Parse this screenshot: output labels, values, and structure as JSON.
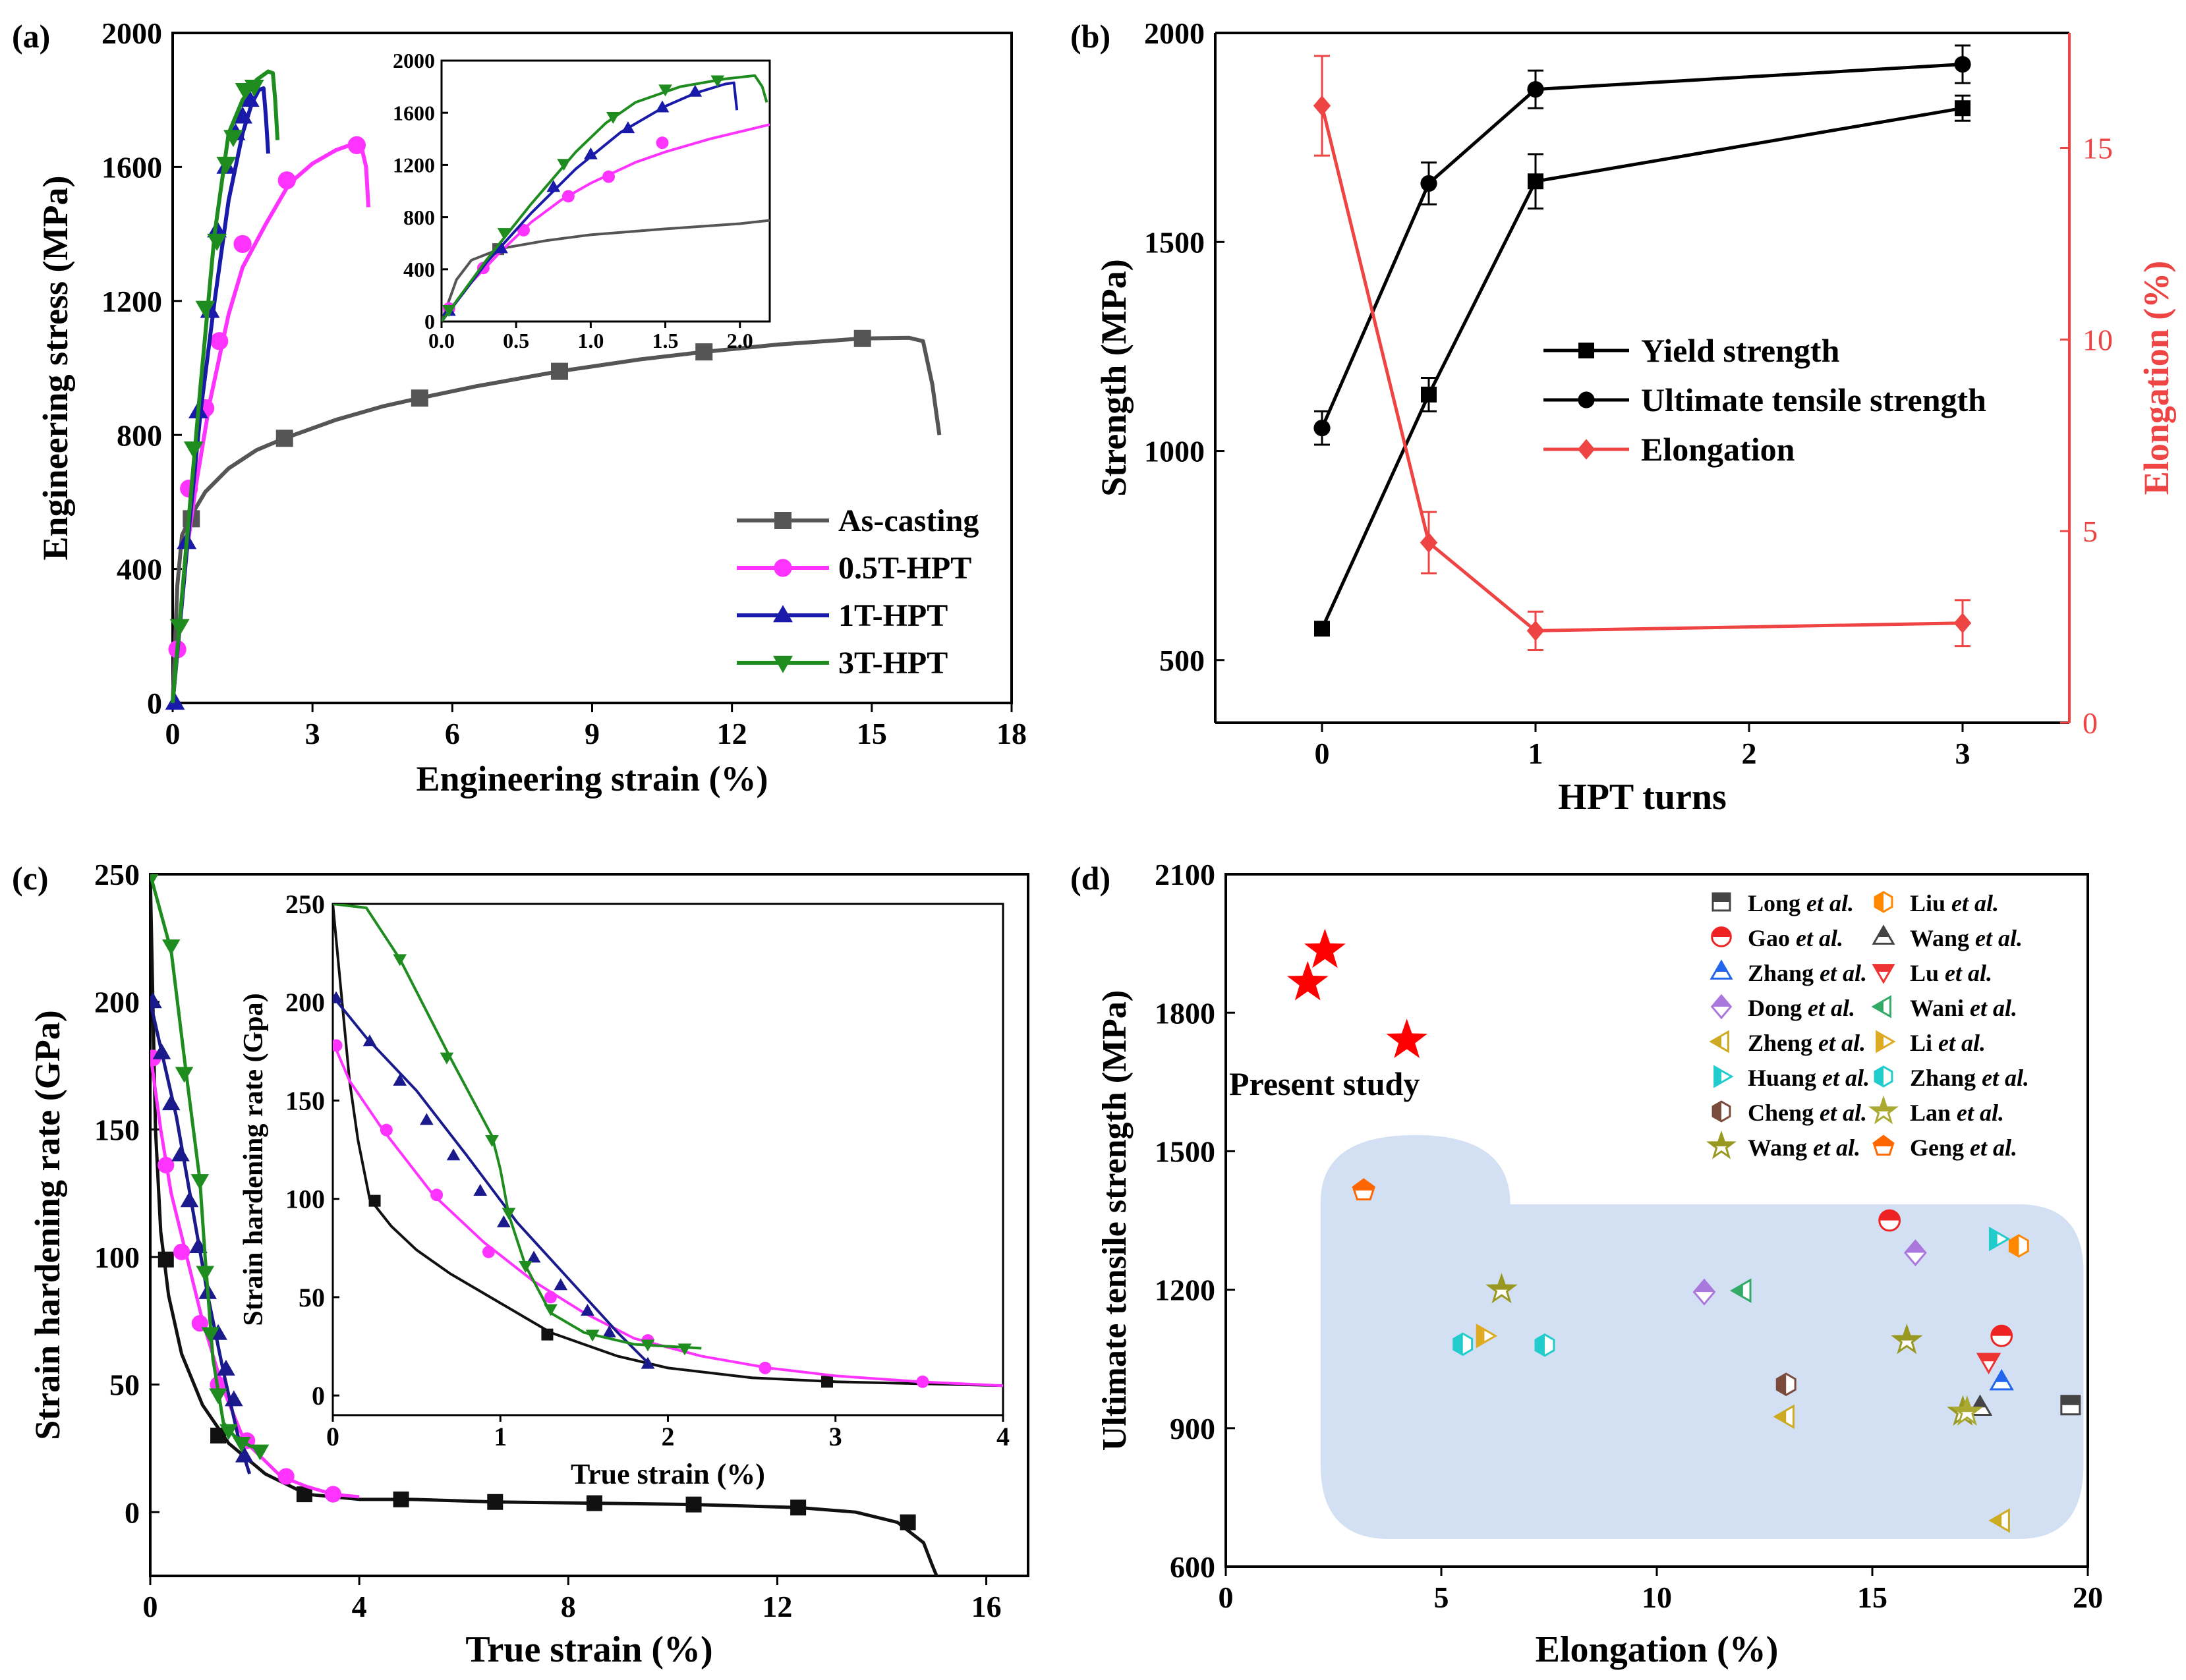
{
  "figure": {
    "panels": [
      {
        "id": "a",
        "label": "(a)",
        "type": "line",
        "xlabel": "Engineering strain (%)",
        "ylabel": "Engineering stress (MPa)",
        "xlim": [
          0,
          18
        ],
        "ylim": [
          0,
          2000
        ],
        "xticks": [
          "0",
          "3",
          "6",
          "9",
          "12",
          "15",
          "18"
        ],
        "yticks": [
          "0",
          "400",
          "800",
          "1200",
          "1600",
          "2000"
        ],
        "legend": {
          "placement": "bottom-right"
        },
        "series": [
          {
            "name": "As-casting",
            "color": "#555555",
            "marker": "square",
            "x": [
              0,
              0.1,
              0.2,
              0.4,
              0.7,
              1.2,
              1.8,
              2.4,
              3.5,
              4.5,
              5.3,
              6.5,
              8.3,
              10,
              11.4,
              13,
              14.8,
              15.8,
              16.1,
              16.3,
              16.45
            ],
            "y": [
              0,
              350,
              500,
              560,
              630,
              700,
              755,
              790,
              845,
              885,
              910,
              945,
              990,
              1025,
              1048,
              1070,
              1088,
              1090,
              1080,
              950,
              800
            ],
            "markers_x": [
              0.4,
              2.4,
              5.3,
              8.3,
              11.4,
              14.8
            ],
            "markers_y": [
              550,
              790,
              910,
              990,
              1048,
              1088
            ]
          },
          {
            "name": "0.5T-HPT",
            "color": "#ff33ff",
            "marker": "circle",
            "x": [
              0,
              0.3,
              0.5,
              0.8,
              1.2,
              1.5,
              2.0,
              2.5,
              3.0,
              3.5,
              3.9,
              4.05,
              4.15,
              4.2
            ],
            "y": [
              0,
              450,
              650,
              900,
              1160,
              1300,
              1430,
              1550,
              1610,
              1650,
              1670,
              1660,
              1600,
              1480
            ],
            "markers_x": [
              0.1,
              0.35,
              0.7,
              1.0,
              1.5,
              2.45,
              3.95
            ],
            "markers_y": [
              160,
              640,
              880,
              1080,
              1370,
              1560,
              1665
            ]
          },
          {
            "name": "1T-HPT",
            "color": "#1a1aaa",
            "marker": "triangle-up",
            "x": [
              0,
              0.3,
              0.6,
              0.9,
              1.2,
              1.5,
              1.7,
              1.85,
              1.95,
              2.0,
              2.05
            ],
            "y": [
              0,
              450,
              870,
              1200,
              1500,
              1700,
              1790,
              1830,
              1835,
              1750,
              1640
            ],
            "markers_x": [
              0.05,
              0.3,
              0.55,
              0.8,
              0.95,
              1.15,
              1.35,
              1.5,
              1.65
            ],
            "markers_y": [
              0,
              480,
              870,
              1170,
              1410,
              1600,
              1700,
              1750,
              1800
            ]
          },
          {
            "name": "3T-HPT",
            "color": "#1e8c1e",
            "marker": "triangle-down",
            "x": [
              0,
              0.3,
              0.6,
              0.9,
              1.2,
              1.5,
              1.8,
              2.05,
              2.15,
              2.2,
              2.25
            ],
            "y": [
              0,
              480,
              950,
              1400,
              1700,
              1800,
              1860,
              1885,
              1880,
              1800,
              1680
            ],
            "markers_x": [
              0.15,
              0.45,
              0.7,
              0.95,
              1.15,
              1.3,
              1.55,
              1.75
            ],
            "markers_y": [
              230,
              760,
              1180,
              1380,
              1610,
              1690,
              1830,
              1840
            ]
          }
        ],
        "inset": {
          "xlim": [
            0,
            2.2
          ],
          "ylim": [
            0,
            2000
          ],
          "xticks": [
            "0.0",
            "0.5",
            "1.0",
            "1.5",
            "2.0"
          ],
          "yticks": [
            "0",
            "400",
            "800",
            "1200",
            "1600",
            "2000"
          ]
        }
      },
      {
        "id": "b",
        "label": "(b)",
        "type": "line",
        "xlabel": "HPT turns",
        "ylabel": "Strength (MPa)",
        "ylabel_right": "Elongation (%)",
        "xlim": [
          -0.5,
          3.5
        ],
        "ylim": [
          350,
          2000
        ],
        "ylim_right": [
          0,
          18
        ],
        "xticks": [
          "0",
          "1",
          "2",
          "3"
        ],
        "yticks": [
          "500",
          "1000",
          "1500",
          "2000"
        ],
        "yticks_right": [
          "0",
          "5",
          "10",
          "15"
        ],
        "legend": {
          "placement": "center-right"
        },
        "series": [
          {
            "name": "Yield strength",
            "color": "#000000",
            "marker": "square",
            "axis": "left",
            "x": [
              0,
              0.5,
              1,
              3
            ],
            "y": [
              575,
              1135,
              1645,
              1820
            ],
            "err": [
              0,
              40,
              65,
              30
            ]
          },
          {
            "name": "Ultimate tensile strength",
            "color": "#000000",
            "marker": "circle",
            "axis": "left",
            "x": [
              0,
              0.5,
              1,
              3
            ],
            "y": [
              1055,
              1640,
              1865,
              1925
            ],
            "err": [
              40,
              50,
              45,
              45
            ]
          },
          {
            "name": "Elongation",
            "color": "#ee4444",
            "marker": "diamond",
            "axis": "right",
            "x": [
              0,
              0.5,
              1,
              3
            ],
            "y": [
              16.1,
              4.7,
              2.4,
              2.6
            ],
            "err": [
              1.3,
              0.8,
              0.5,
              0.6
            ]
          }
        ]
      },
      {
        "id": "c",
        "label": "(c)",
        "type": "line",
        "xlabel": "True strain (%)",
        "ylabel": "Strain hardening rate (GPa)",
        "xlim": [
          0,
          16.8
        ],
        "ylim": [
          -25,
          250
        ],
        "xticks": [
          "0",
          "4",
          "8",
          "12",
          "16"
        ],
        "yticks": [
          "0",
          "50",
          "100",
          "150",
          "200",
          "250"
        ],
        "legend": {
          "placement": "top-right"
        },
        "series": [
          {
            "name": "As-casting",
            "color": "#111111",
            "marker": "square",
            "x": [
              0,
              0.05,
              0.1,
              0.2,
              0.35,
              0.6,
              1.0,
              1.5,
              2.2,
              3.0,
              4.0,
              5.0,
              6.6,
              8.5,
              10.4,
              12.4,
              13.5,
              14.3,
              14.8,
              14.95,
              15.05
            ],
            "y": [
              250,
              200,
              150,
              110,
              85,
              62,
              42,
              27,
              15,
              7,
              5,
              5,
              4,
              3.5,
              3,
              1.8,
              0,
              -4,
              -12,
              -20,
              -25
            ],
            "markers_x": [
              0.3,
              1.3,
              2.95,
              4.8,
              6.6,
              8.5,
              10.4,
              12.4,
              14.5
            ],
            "markers_y": [
              99,
              30,
              7,
              5,
              4,
              3.5,
              3,
              1.8,
              -4
            ]
          },
          {
            "name": "0.5T-HPT",
            "color": "#ff33ff",
            "marker": "circle",
            "x": [
              0,
              0.2,
              0.4,
              0.7,
              1.0,
              1.4,
              1.8,
              2.5,
              3.0,
              3.5,
              4.0
            ],
            "y": [
              180,
              150,
              125,
              100,
              75,
              48,
              28,
              14,
              10,
              7,
              6
            ],
            "markers_x": [
              0.05,
              0.3,
              0.6,
              0.95,
              1.3,
              1.85,
              2.6,
              3.5
            ],
            "markers_y": [
              178,
              136,
              102,
              74,
              50,
              28,
              14,
              7
            ]
          },
          {
            "name": "1T-HPT",
            "color": "#1a1a8c",
            "marker": "triangle-up",
            "x": [
              0,
              0.2,
              0.5,
              0.8,
              1.1,
              1.4,
              1.7,
              1.9
            ],
            "y": [
              200,
              182,
              155,
              120,
              85,
              55,
              28,
              15
            ],
            "markers_x": [
              0.05,
              0.22,
              0.4,
              0.58,
              0.75,
              0.92,
              1.1,
              1.3,
              1.45,
              1.6,
              1.8
            ],
            "markers_y": [
              200,
              180,
              160,
              140,
              122,
              104,
              86,
              70,
              56,
              44,
              22
            ]
          },
          {
            "name": "3T-HPT",
            "color": "#1e8c1e",
            "marker": "triangle-down",
            "x": [
              0,
              0.4,
              0.7,
              0.95,
              1.05,
              1.2,
              1.4,
              1.6,
              1.9,
              2.2
            ],
            "y": [
              250,
              220,
              170,
              130,
              100,
              60,
              35,
              30,
              26,
              24
            ],
            "markers_x": [
              0.05,
              0.4,
              0.65,
              0.95,
              1.05,
              1.15,
              1.3,
              1.5,
              1.75,
              2.1
            ],
            "markers_y": [
              250,
              222,
              172,
              130,
              94,
              70,
              46,
              32,
              27,
              24
            ]
          }
        ],
        "inset": {
          "xlim": [
            0,
            4
          ],
          "ylim": [
            -10,
            250
          ],
          "xlabel": "True strain (%)",
          "ylabel": "Strain hardening rate (Gpa)",
          "xticks": [
            "0",
            "1",
            "2",
            "3",
            "4"
          ],
          "yticks": [
            "0",
            "50",
            "100",
            "150",
            "200",
            "250"
          ]
        }
      },
      {
        "id": "d",
        "label": "(d)",
        "type": "scatter",
        "xlabel": "Elongation (%)",
        "ylabel": "Ultimate tensile strength (MPa)",
        "xlim": [
          0,
          20
        ],
        "ylim": [
          600,
          2100
        ],
        "xticks": [
          "0",
          "5",
          "10",
          "15",
          "20"
        ],
        "yticks": [
          "600",
          "900",
          "1200",
          "1500",
          "1800",
          "2100"
        ],
        "annotation": "Present study",
        "legend": {
          "placement": "top-right"
        },
        "present_study": {
          "color": "#ff0000",
          "marker": "star",
          "x": [
            1.9,
            2.3,
            4.2
          ],
          "y": [
            1865,
            1935,
            1740
          ]
        },
        "series": [
          {
            "name": "Long",
            "suffix": "et al.",
            "color": "#444444",
            "marker": "square-half",
            "x": [
              19.6
            ],
            "y": [
              950
            ]
          },
          {
            "name": "Gao",
            "suffix": "et al.",
            "color": "#ee2222",
            "marker": "circle-half",
            "x": [
              15.4,
              18.0
            ],
            "y": [
              1350,
              1100
            ]
          },
          {
            "name": "Zhang",
            "suffix": "et al.",
            "color": "#2266ee",
            "marker": "triangle-up-half",
            "x": [
              18.0
            ],
            "y": [
              1000
            ]
          },
          {
            "name": "Dong",
            "suffix": "et al.",
            "color": "#aa77dd",
            "marker": "diamond-half",
            "x": [
              11.1,
              16.0
            ],
            "y": [
              1195,
              1280
            ]
          },
          {
            "name": "Zheng",
            "suffix": "et al.",
            "color": "#ccaa22",
            "marker": "triangle-left-half",
            "x": [
              13.0,
              18.0
            ],
            "y": [
              925,
              700
            ]
          },
          {
            "name": "Huang",
            "suffix": "et al.",
            "color": "#22cccc",
            "marker": "triangle-right-half",
            "x": [
              17.9
            ],
            "y": [
              1310
            ]
          },
          {
            "name": "Cheng",
            "suffix": "et al.",
            "color": "#7a4a3a",
            "marker": "hexagon-half",
            "x": [
              13.0
            ],
            "y": [
              995
            ]
          },
          {
            "name": "Wang",
            "suffix": "et al.",
            "color": "#999922",
            "marker": "star-half",
            "x": [
              6.4,
              15.8,
              17.1
            ],
            "y": [
              1200,
              1090,
              935
            ]
          },
          {
            "name": "Liu",
            "suffix": "et al.",
            "color": "#ff8800",
            "marker": "hexagon-half",
            "x": [
              18.4
            ],
            "y": [
              1295
            ]
          },
          {
            "name": "Wang",
            "suffix": "et al.",
            "color": "#444444",
            "marker": "triangle-up-half",
            "x": [
              17.5
            ],
            "y": [
              945
            ]
          },
          {
            "name": "Lu",
            "suffix": "et al.",
            "color": "#ee3333",
            "marker": "triangle-down-half",
            "x": [
              17.7
            ],
            "y": [
              1045
            ]
          },
          {
            "name": "Wani",
            "suffix": "et al.",
            "color": "#33aa66",
            "marker": "triangle-left-half",
            "x": [
              12.0
            ],
            "y": [
              1198
            ]
          },
          {
            "name": "Li",
            "suffix": "et al.",
            "color": "#ddaa22",
            "marker": "triangle-right-half",
            "x": [
              6.0
            ],
            "y": [
              1100
            ]
          },
          {
            "name": "Zhang",
            "suffix": "et al.",
            "color": "#22cccc",
            "marker": "hexagon-half",
            "x": [
              5.5,
              7.4
            ],
            "y": [
              1082,
              1080
            ]
          },
          {
            "name": "Lan",
            "suffix": "et al.",
            "color": "#aaaa33",
            "marker": "star-half",
            "x": [
              17.2
            ],
            "y": [
              935
            ]
          },
          {
            "name": "Geng",
            "suffix": "et al.",
            "color": "#ff6600",
            "marker": "pentagon-half",
            "x": [
              3.2
            ],
            "y": [
              1415
            ]
          }
        ]
      }
    ]
  }
}
